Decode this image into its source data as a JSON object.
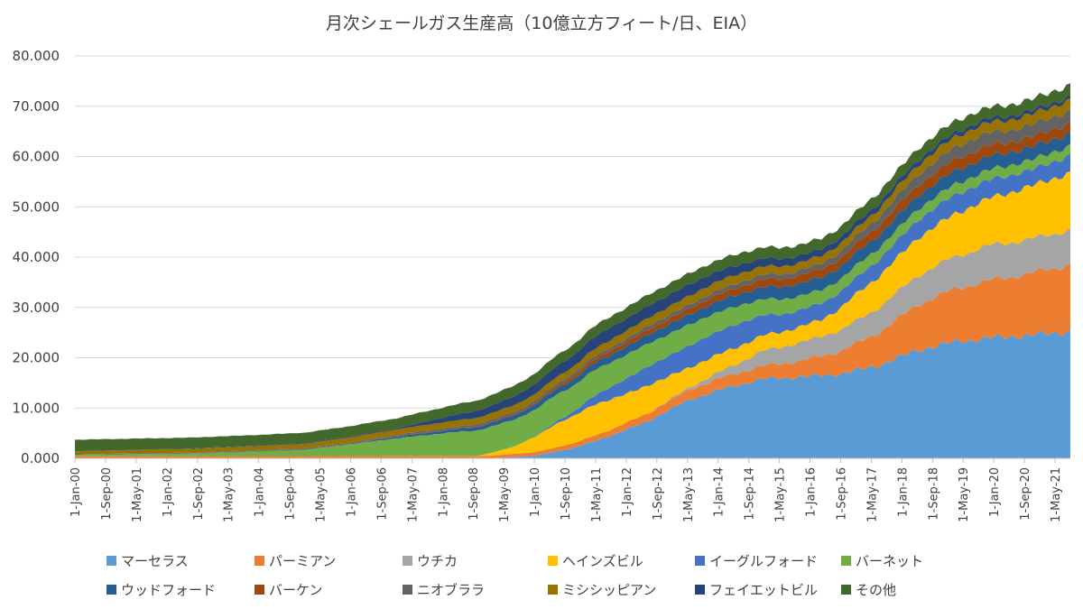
{
  "chart_data": {
    "type": "area",
    "stacked": true,
    "title": "月次シェールガス生産高（10億立方フィート/日、EIA）",
    "xlabel": "",
    "ylabel": "",
    "ylim": [
      0,
      80
    ],
    "yticks": [
      "0.000",
      "10.000",
      "20.000",
      "30.000",
      "40.000",
      "50.000",
      "60.000",
      "70.000",
      "80.000"
    ],
    "x_tick_labels": [
      "1-Jan-00",
      "1-Sep-00",
      "1-May-01",
      "1-Jan-02",
      "1-Sep-02",
      "1-May-03",
      "1-Jan-04",
      "1-Sep-04",
      "1-May-05",
      "1-Jan-06",
      "1-Sep-06",
      "1-May-07",
      "1-Jan-08",
      "1-Sep-08",
      "1-May-09",
      "1-Jan-10",
      "1-Sep-10",
      "1-May-11",
      "1-Jan-12",
      "1-Sep-12",
      "1-May-13",
      "1-Jan-14",
      "1-Sep-14",
      "1-May-15",
      "1-Jan-16",
      "1-Sep-16",
      "1-May-17",
      "1-Jan-18",
      "1-Sep-18",
      "1-May-19",
      "1-Jan-20",
      "1-Sep-20",
      "1-May-21"
    ],
    "x_start": "2000-01",
    "x_end": "2021-08",
    "legend_position": "bottom",
    "series": [
      {
        "name": "マーセラス",
        "color": "#5B9BD5",
        "knots": [
          [
            0,
            0
          ],
          [
            108,
            0
          ],
          [
            120,
            0.5
          ],
          [
            130,
            2
          ],
          [
            140,
            4.5
          ],
          [
            150,
            7.5
          ],
          [
            160,
            11.5
          ],
          [
            170,
            14
          ],
          [
            180,
            15.8
          ],
          [
            190,
            16.2
          ],
          [
            200,
            16.8
          ],
          [
            210,
            18.5
          ],
          [
            220,
            21.5
          ],
          [
            230,
            23.2
          ],
          [
            240,
            24
          ],
          [
            250,
            24.5
          ],
          [
            260,
            25.2
          ]
        ]
      },
      {
        "name": "パーミアン",
        "color": "#ED7D31",
        "knots": [
          [
            0,
            0.4
          ],
          [
            108,
            0.5
          ],
          [
            120,
            0.7
          ],
          [
            140,
            1.2
          ],
          [
            160,
            2
          ],
          [
            180,
            2.6
          ],
          [
            190,
            3.2
          ],
          [
            200,
            4.5
          ],
          [
            210,
            6.5
          ],
          [
            220,
            9
          ],
          [
            230,
            10.5
          ],
          [
            240,
            11.5
          ],
          [
            250,
            12.3
          ],
          [
            260,
            13.3
          ]
        ]
      },
      {
        "name": "ウチカ",
        "color": "#A5A5A5",
        "knots": [
          [
            0,
            0
          ],
          [
            150,
            0
          ],
          [
            160,
            0.4
          ],
          [
            170,
            1.5
          ],
          [
            180,
            3
          ],
          [
            190,
            3.7
          ],
          [
            200,
            4.2
          ],
          [
            210,
            5
          ],
          [
            220,
            5.8
          ],
          [
            230,
            6.5
          ],
          [
            240,
            7
          ],
          [
            250,
            6.8
          ],
          [
            260,
            7
          ]
        ]
      },
      {
        "name": "ヘインズビル",
        "color": "#FFC000",
        "knots": [
          [
            0,
            0
          ],
          [
            105,
            0
          ],
          [
            115,
            1.5
          ],
          [
            125,
            4.5
          ],
          [
            135,
            6.2
          ],
          [
            150,
            5.5
          ],
          [
            160,
            4
          ],
          [
            175,
            3.2
          ],
          [
            185,
            3
          ],
          [
            195,
            3.3
          ],
          [
            205,
            5.5
          ],
          [
            220,
            7.5
          ],
          [
            235,
            9
          ],
          [
            245,
            10
          ],
          [
            255,
            11
          ],
          [
            260,
            11.2
          ]
        ]
      },
      {
        "name": "イーグルフォード",
        "color": "#4472C4",
        "knots": [
          [
            0,
            0
          ],
          [
            120,
            0
          ],
          [
            130,
            0.8
          ],
          [
            140,
            2.5
          ],
          [
            150,
            3.8
          ],
          [
            165,
            4.6
          ],
          [
            175,
            4.5
          ],
          [
            185,
            3.4
          ],
          [
            200,
            3.2
          ],
          [
            215,
            3.4
          ],
          [
            230,
            3.8
          ],
          [
            240,
            3.6
          ],
          [
            250,
            3.2
          ],
          [
            260,
            3.5
          ]
        ]
      },
      {
        "name": "バーネット",
        "color": "#70AD47",
        "knots": [
          [
            0,
            0.3
          ],
          [
            30,
            0.5
          ],
          [
            60,
            1.2
          ],
          [
            84,
            3.5
          ],
          [
            96,
            4.5
          ],
          [
            108,
            5.2
          ],
          [
            120,
            5.4
          ],
          [
            135,
            5.1
          ],
          [
            150,
            4.5
          ],
          [
            165,
            4
          ],
          [
            180,
            3.2
          ],
          [
            195,
            2.6
          ],
          [
            210,
            2.3
          ],
          [
            230,
            2.1
          ],
          [
            245,
            2
          ],
          [
            260,
            1.9
          ]
        ]
      },
      {
        "name": "ウッドフォード",
        "color": "#255E91",
        "knots": [
          [
            0,
            0
          ],
          [
            72,
            0.1
          ],
          [
            96,
            0.5
          ],
          [
            120,
            1
          ],
          [
            150,
            1.8
          ],
          [
            170,
            2.2
          ],
          [
            185,
            2.5
          ],
          [
            200,
            2.5
          ],
          [
            215,
            2.6
          ],
          [
            230,
            2.7
          ],
          [
            245,
            2.6
          ],
          [
            260,
            2.5
          ]
        ]
      },
      {
        "name": "バーケン",
        "color": "#9E480E",
        "knots": [
          [
            0,
            0
          ],
          [
            96,
            0.1
          ],
          [
            120,
            0.3
          ],
          [
            140,
            0.8
          ],
          [
            160,
            1.2
          ],
          [
            180,
            1.5
          ],
          [
            200,
            1.7
          ],
          [
            215,
            2
          ],
          [
            235,
            2.3
          ],
          [
            245,
            2
          ],
          [
            260,
            2
          ]
        ]
      },
      {
        "name": "ニオブララ",
        "color": "#636363",
        "knots": [
          [
            0,
            0.1
          ],
          [
            72,
            0.2
          ],
          [
            120,
            0.5
          ],
          [
            160,
            0.8
          ],
          [
            190,
            1
          ],
          [
            205,
            1.5
          ],
          [
            215,
            2
          ],
          [
            235,
            2.6
          ],
          [
            245,
            2.4
          ],
          [
            260,
            2.5
          ]
        ]
      },
      {
        "name": "ミシシッピアン",
        "color": "#997300",
        "knots": [
          [
            0,
            0.6
          ],
          [
            48,
            0.8
          ],
          [
            96,
            1.2
          ],
          [
            120,
            1.3
          ],
          [
            150,
            1.6
          ],
          [
            170,
            1.8
          ],
          [
            190,
            1.5
          ],
          [
            210,
            1.6
          ],
          [
            225,
            2
          ],
          [
            240,
            2
          ],
          [
            260,
            2.1
          ]
        ]
      },
      {
        "name": "フェイエットビル",
        "color": "#264478",
        "knots": [
          [
            0,
            0
          ],
          [
            84,
            0.2
          ],
          [
            100,
            1.2
          ],
          [
            120,
            2
          ],
          [
            140,
            2.5
          ],
          [
            160,
            2.3
          ],
          [
            180,
            1.6
          ],
          [
            200,
            1.2
          ],
          [
            220,
            1
          ],
          [
            240,
            0.8
          ],
          [
            260,
            0.7
          ]
        ]
      },
      {
        "name": "その他",
        "color": "#43682B",
        "knots": [
          [
            0,
            2.3
          ],
          [
            48,
            2.1
          ],
          [
            96,
            2
          ],
          [
            120,
            2.1
          ],
          [
            150,
            2.2
          ],
          [
            180,
            2.2
          ],
          [
            200,
            2.1
          ],
          [
            220,
            2.3
          ],
          [
            240,
            2.2
          ],
          [
            260,
            2.3
          ]
        ]
      }
    ]
  }
}
